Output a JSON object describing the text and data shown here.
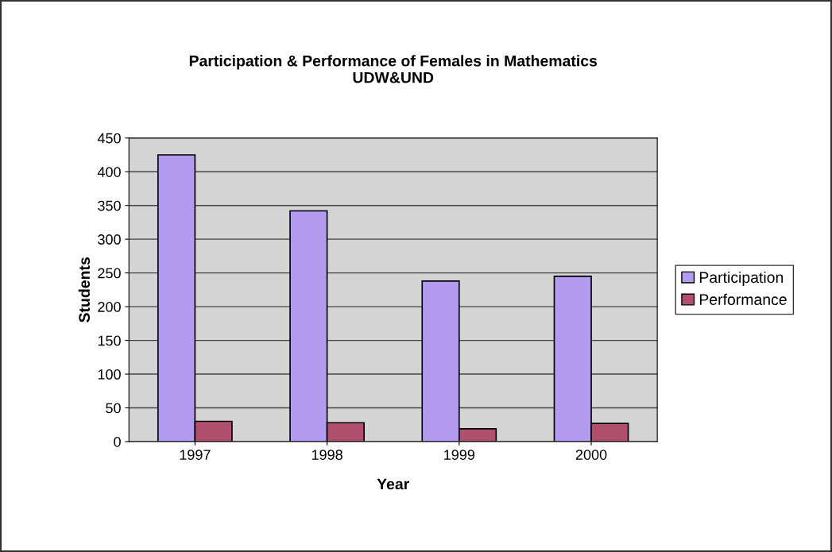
{
  "chart_data": {
    "type": "bar",
    "title": "Participation & Performance of Females in Mathematics\nUDW&UND",
    "xlabel": "Year",
    "ylabel": "Students",
    "categories": [
      "1997",
      "1998",
      "1999",
      "2000"
    ],
    "series": [
      {
        "name": "Participation",
        "color": "#b39cf0",
        "values": [
          425,
          342,
          238,
          245
        ]
      },
      {
        "name": "Performance",
        "color": "#b0506e",
        "values": [
          30,
          28,
          19,
          27
        ]
      }
    ],
    "ylim": [
      0,
      450
    ],
    "yticks": [
      0,
      50,
      100,
      150,
      200,
      250,
      300,
      350,
      400,
      450
    ],
    "grid": "y",
    "legend": "right"
  }
}
